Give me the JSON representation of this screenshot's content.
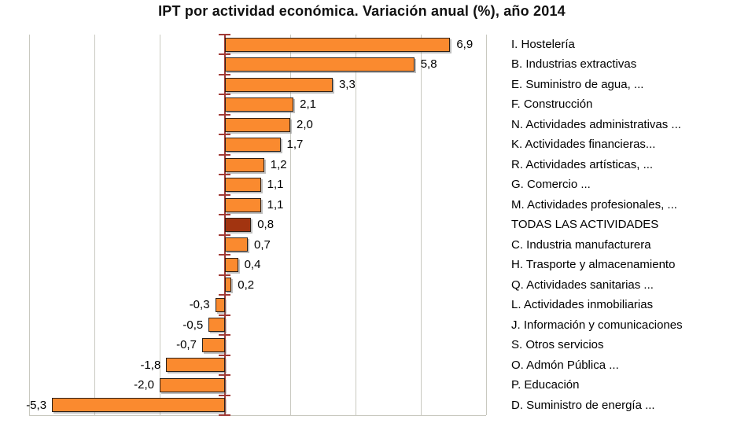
{
  "chart_data": {
    "type": "bar",
    "orientation": "horizontal",
    "title": "IPT por actividad económica. Variación anual (%), año 2014",
    "categories": [
      "I. Hostelería",
      "B. Industrias extractivas",
      "E. Suministro de agua, ...",
      "F. Construcción",
      "N. Actividades administrativas ...",
      "K. Actividades financieras...",
      "R. Actividades artísticas, ...",
      "G. Comercio ...",
      "M. Actividades profesionales, ...",
      "TODAS LAS ACTIVIDADES",
      "C. Industria manufacturera",
      "H. Trasporte y almacenamiento",
      "Q. Actividades sanitarias ...",
      "L. Actividades inmobiliarias",
      "J. Información y comunicaciones",
      "S. Otros servicios",
      "O. Admón Pública ...",
      "P. Educación",
      "D. Suministro de energía ..."
    ],
    "values": [
      6.9,
      5.8,
      3.3,
      2.1,
      2.0,
      1.7,
      1.2,
      1.1,
      1.1,
      0.8,
      0.7,
      0.4,
      0.2,
      -0.3,
      -0.5,
      -0.7,
      -1.8,
      -2.0,
      -5.3
    ],
    "value_labels": [
      "6,9",
      "5,8",
      "3,3",
      "2,1",
      "2,0",
      "1,7",
      "1,2",
      "1,1",
      "1,1",
      "0,8",
      "0,7",
      "0,4",
      "0,2",
      "-0,3",
      "-0,5",
      "-0,7",
      "-1,8",
      "-2,0",
      "-5,3"
    ],
    "highlight_index": 9,
    "highlight_category": "TODAS LAS ACTIVIDADES",
    "xlim": [
      -6,
      8
    ],
    "grid_step": 2,
    "grid": true,
    "legend": false,
    "axis_tick_marks": "category-boundaries",
    "colors": {
      "bar": "#fa8a2f",
      "bar_highlight": "#a23410",
      "bar_border": "#2b2019",
      "axis": "#a03a36",
      "gridline": "#c9c9c0",
      "text": "#000000",
      "background": "#ffffff"
    }
  }
}
